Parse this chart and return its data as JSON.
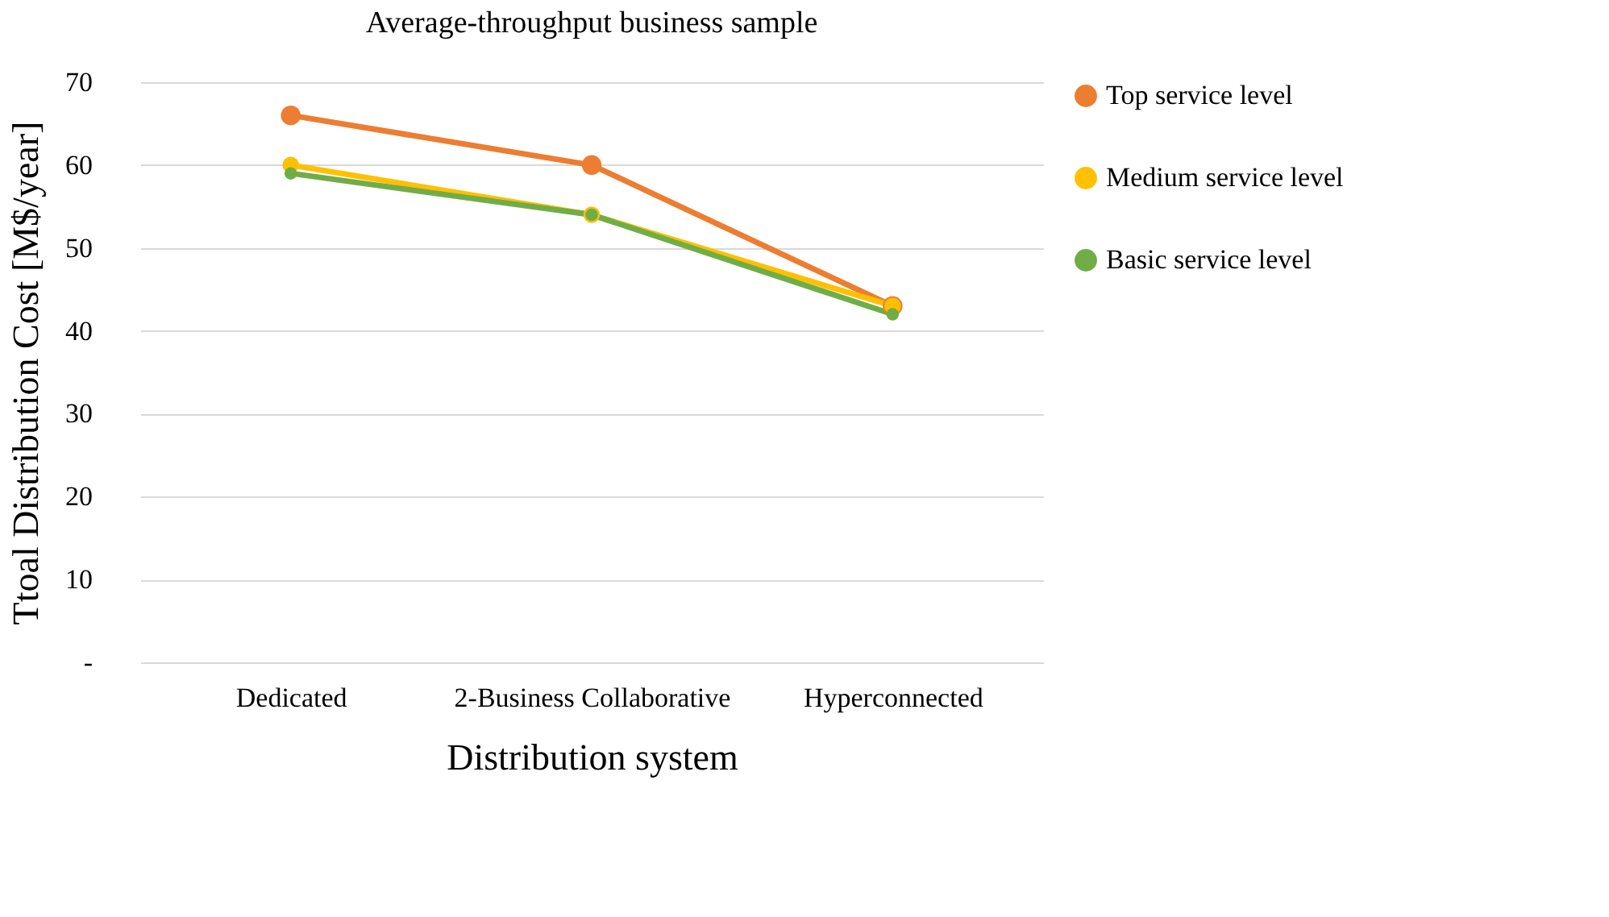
{
  "chart_data": {
    "type": "line",
    "title": "Average-throughput business sample",
    "xlabel": "Distribution system",
    "ylabel": "Ttoal Distribution Cost [M$/year]",
    "categories": [
      "Dedicated",
      "2-Business Collaborative",
      "Hyperconnected"
    ],
    "series": [
      {
        "name": "Top service level",
        "color": "#ed7d31",
        "values": [
          66,
          60,
          43
        ]
      },
      {
        "name": "Medium service level",
        "color": "#ffc000",
        "values": [
          60,
          54,
          43
        ]
      },
      {
        "name": "Basic service level",
        "color": "#70ad47",
        "values": [
          59,
          54,
          42
        ]
      }
    ],
    "ylim": [
      0,
      70
    ],
    "yticks": [
      {
        "value": 0,
        "label": "-"
      },
      10,
      20,
      30,
      40,
      50,
      60,
      70
    ],
    "grid": "y",
    "legend": "right",
    "marker": "circle",
    "line_style": "solid"
  }
}
